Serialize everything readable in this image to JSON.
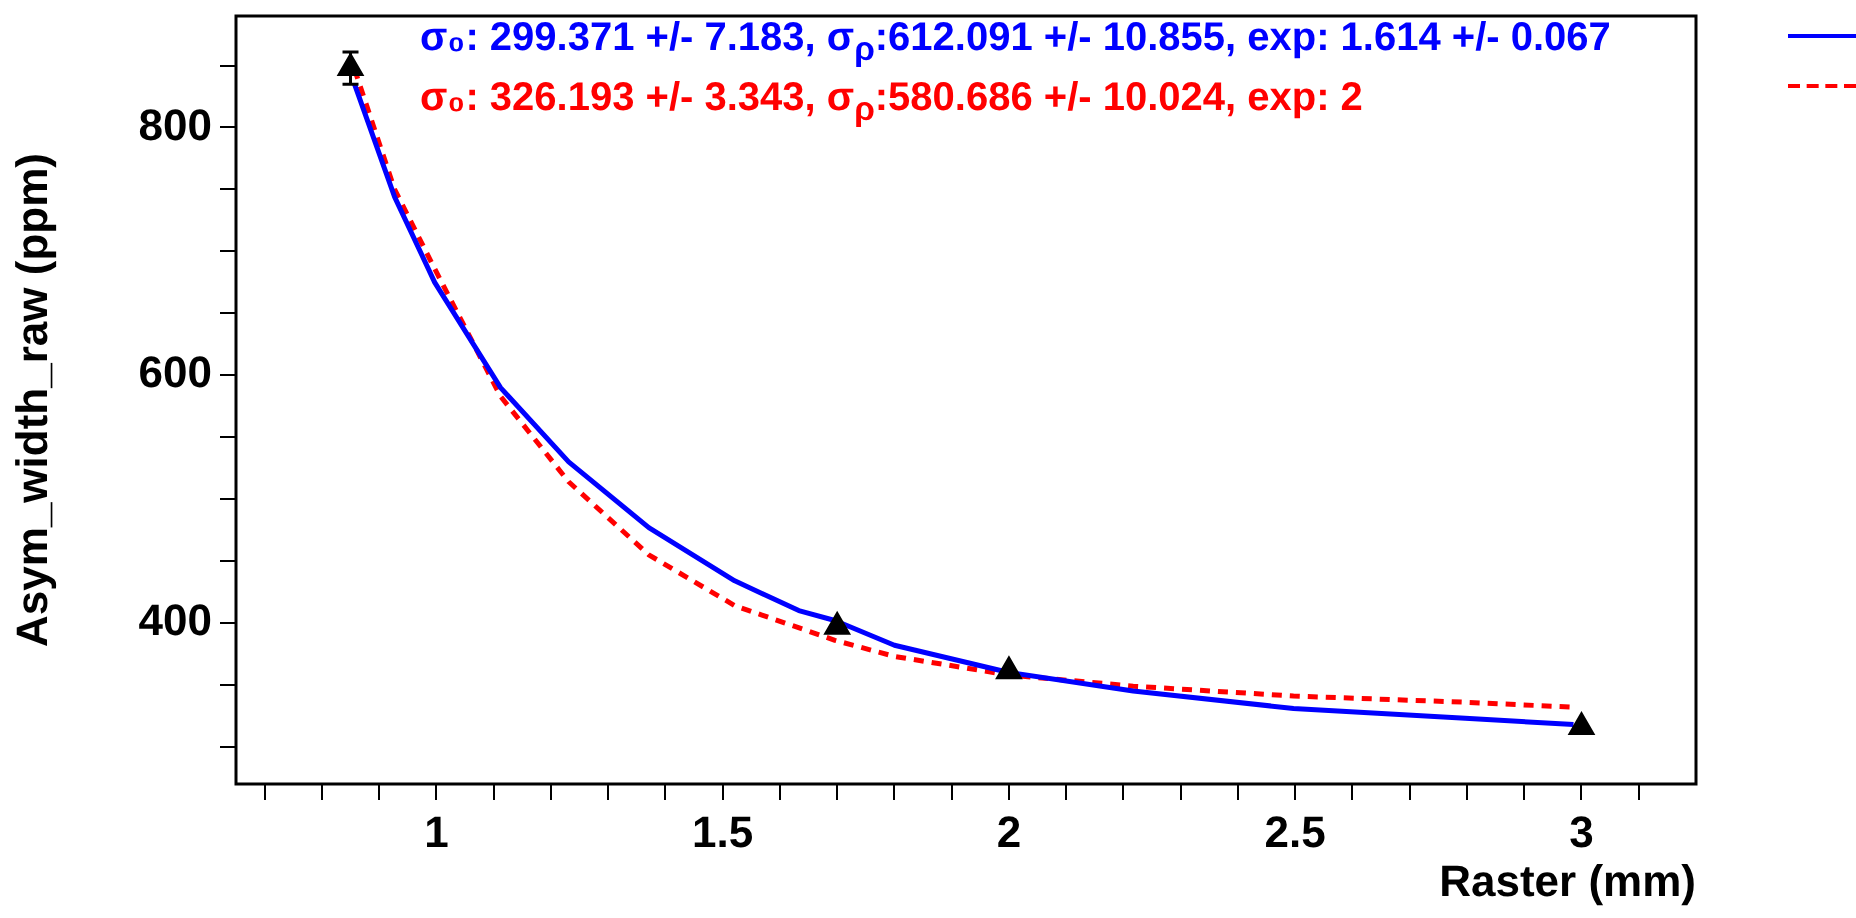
{
  "chart_data": {
    "type": "scatter",
    "xlabel": "Raster (mm)",
    "ylabel": "Asym_width_raw (ppm)",
    "xlim": [
      0.65,
      3.2
    ],
    "ylim": [
      270,
      890
    ],
    "xticks": [
      {
        "value": 0.7,
        "label": null
      },
      {
        "value": 0.8,
        "label": null
      },
      {
        "value": 0.9,
        "label": null
      },
      1,
      {
        "value": 1.1,
        "label": null
      },
      {
        "value": 1.2,
        "label": null
      },
      {
        "value": 1.3,
        "label": null
      },
      {
        "value": 1.4,
        "label": null
      },
      1.5,
      {
        "value": 1.6,
        "label": null
      },
      {
        "value": 1.7,
        "label": null
      },
      {
        "value": 1.8,
        "label": null
      },
      {
        "value": 1.9,
        "label": null
      },
      2,
      {
        "value": 2.1,
        "label": null
      },
      {
        "value": 2.2,
        "label": null
      },
      {
        "value": 2.3,
        "label": null
      },
      {
        "value": 2.4,
        "label": null
      },
      2.5,
      {
        "value": 2.6,
        "label": null
      },
      {
        "value": 2.7,
        "label": null
      },
      {
        "value": 2.8,
        "label": null
      },
      {
        "value": 2.9,
        "label": null
      },
      3,
      {
        "value": 3.1,
        "label": null
      }
    ],
    "yticks": [
      {
        "value": 300,
        "label": null
      },
      {
        "value": 350,
        "label": null
      },
      400,
      {
        "value": 450,
        "label": null
      },
      {
        "value": 500,
        "label": null
      },
      {
        "value": 550,
        "label": null
      },
      600,
      {
        "value": 650,
        "label": null
      },
      {
        "value": 700,
        "label": null
      },
      {
        "value": 750,
        "label": null
      },
      800,
      {
        "value": 850,
        "label": null
      }
    ],
    "grid": false,
    "series": [
      {
        "type": "scatter",
        "color": "#000000",
        "marker": "triangle",
        "x": [
          0.85,
          1.7,
          2.0,
          3.0
        ],
        "values": [
          848,
          397,
          361,
          316
        ],
        "errors": [
          13,
          null,
          null,
          null
        ]
      },
      {
        "type": "line",
        "color": "#0000ff",
        "line_style": "solid",
        "marker": "none",
        "x": [
          0.857,
          0.927,
          0.997,
          1.112,
          1.231,
          1.371,
          1.521,
          1.633,
          1.696,
          1.8,
          2.0,
          2.217,
          2.497,
          2.797,
          2.986
        ],
        "values": [
          835,
          744,
          675,
          590,
          530,
          477,
          434,
          410,
          402,
          382,
          360,
          345,
          331,
          323,
          318
        ]
      },
      {
        "type": "line",
        "color": "#ff0000",
        "line_style": "dashed",
        "marker": "none",
        "x": [
          0.857,
          0.927,
          0.997,
          1.112,
          1.231,
          1.371,
          1.521,
          1.696,
          1.8,
          2.0,
          2.217,
          2.497,
          2.797,
          2.986
        ],
        "values": [
          847,
          750,
          686,
          583,
          514,
          455,
          414,
          386,
          373,
          358,
          349,
          341,
          336,
          332
        ]
      }
    ],
    "annotations": [
      "σ₀: 299.371 +/- 7.183, σ$_{ρ}$:612.091 +/- 10.855, exp: 1.614 +/- 0.067",
      "σ₀: 326.193 +/- 3.343, σ$_{ρ}$:580.686 +/- 10.024, exp: 2"
    ]
  }
}
